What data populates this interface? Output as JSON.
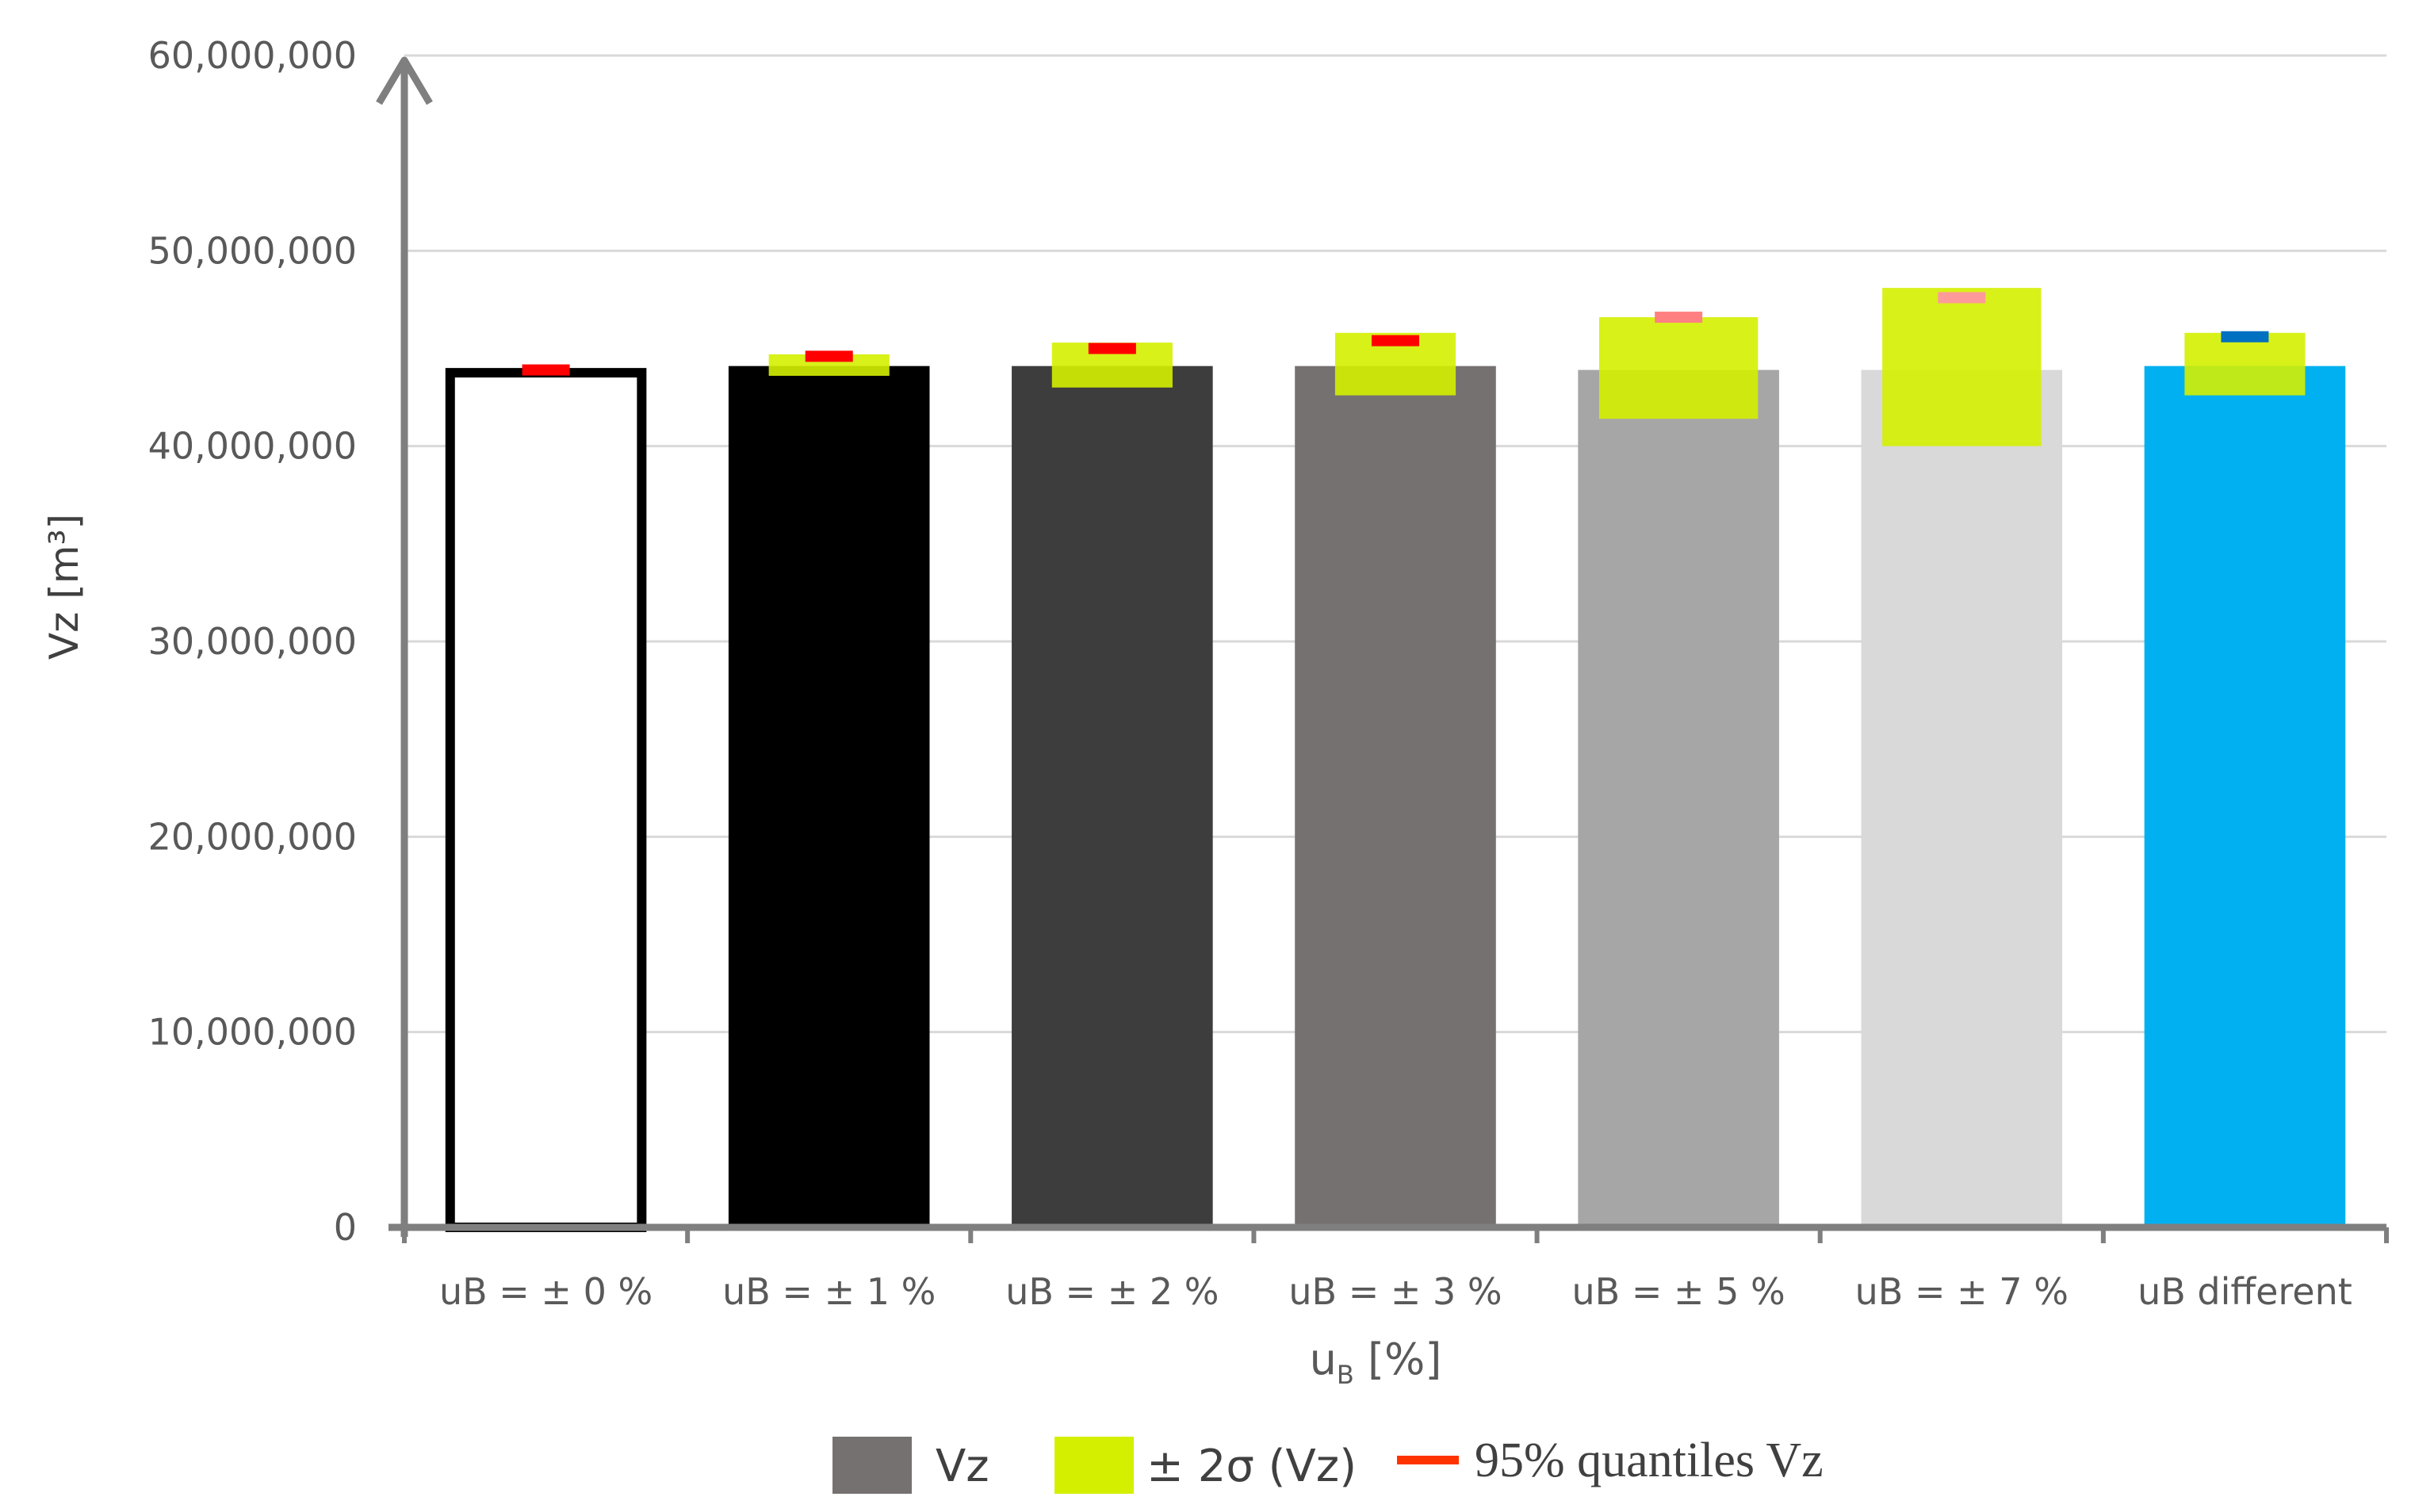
{
  "chart_data": {
    "type": "bar",
    "title": "",
    "ylabel": "Vz [m³]",
    "xlabel_main": "u",
    "xlabel_sub": "B",
    "xlabel_suffix": " [%]",
    "ylim": [
      0,
      60000000
    ],
    "yticks": [
      0,
      10000000,
      20000000,
      30000000,
      40000000,
      50000000,
      60000000
    ],
    "ytick_labels": [
      "0",
      "10,000,000",
      "20,000,000",
      "30,000,000",
      "40,000,000",
      "50,000,000",
      "60,000,000"
    ],
    "grid": true,
    "categories": [
      "uB = ± 0 %",
      "uB = ± 1 %",
      "uB = ± 2 %",
      "uB = ± 3 %",
      "uB = ± 5 %",
      "uB = ± 7 %",
      "uB different"
    ],
    "series": [
      {
        "name": "Vz",
        "values": [
          44000000,
          44100000,
          44100000,
          44100000,
          43900000,
          43900000,
          44100000
        ],
        "colors": [
          "#ffffff",
          "#000000",
          "#3d3d3d",
          "#767171",
          "#a6a6a6",
          "#d9d9d9",
          "#00b0f0"
        ]
      },
      {
        "name": "± 2σ (Vz)",
        "low": [
          44000000,
          43600000,
          43000000,
          42600000,
          41400000,
          40000000,
          42600000
        ],
        "high": [
          44000000,
          44700000,
          45300000,
          45800000,
          46600000,
          48100000,
          45800000
        ],
        "color": "#d4f000"
      },
      {
        "name": "95% quantiles Vz",
        "values": [
          43900000,
          44600000,
          45000000,
          45400000,
          46600000,
          47600000,
          45600000
        ],
        "colors": [
          "#ff0000",
          "#ff0000",
          "#ff0000",
          "#ff0000",
          "#ff8080",
          "#ff9a9a",
          "#0070c0"
        ]
      }
    ],
    "legend": {
      "position": "bottom",
      "items": [
        {
          "label": "Vz",
          "color": "#767171"
        },
        {
          "label": "± 2σ (Vz)",
          "color": "#d4f000"
        },
        {
          "label": "95% quantiles Vz",
          "color": "#ff3300"
        }
      ]
    }
  }
}
